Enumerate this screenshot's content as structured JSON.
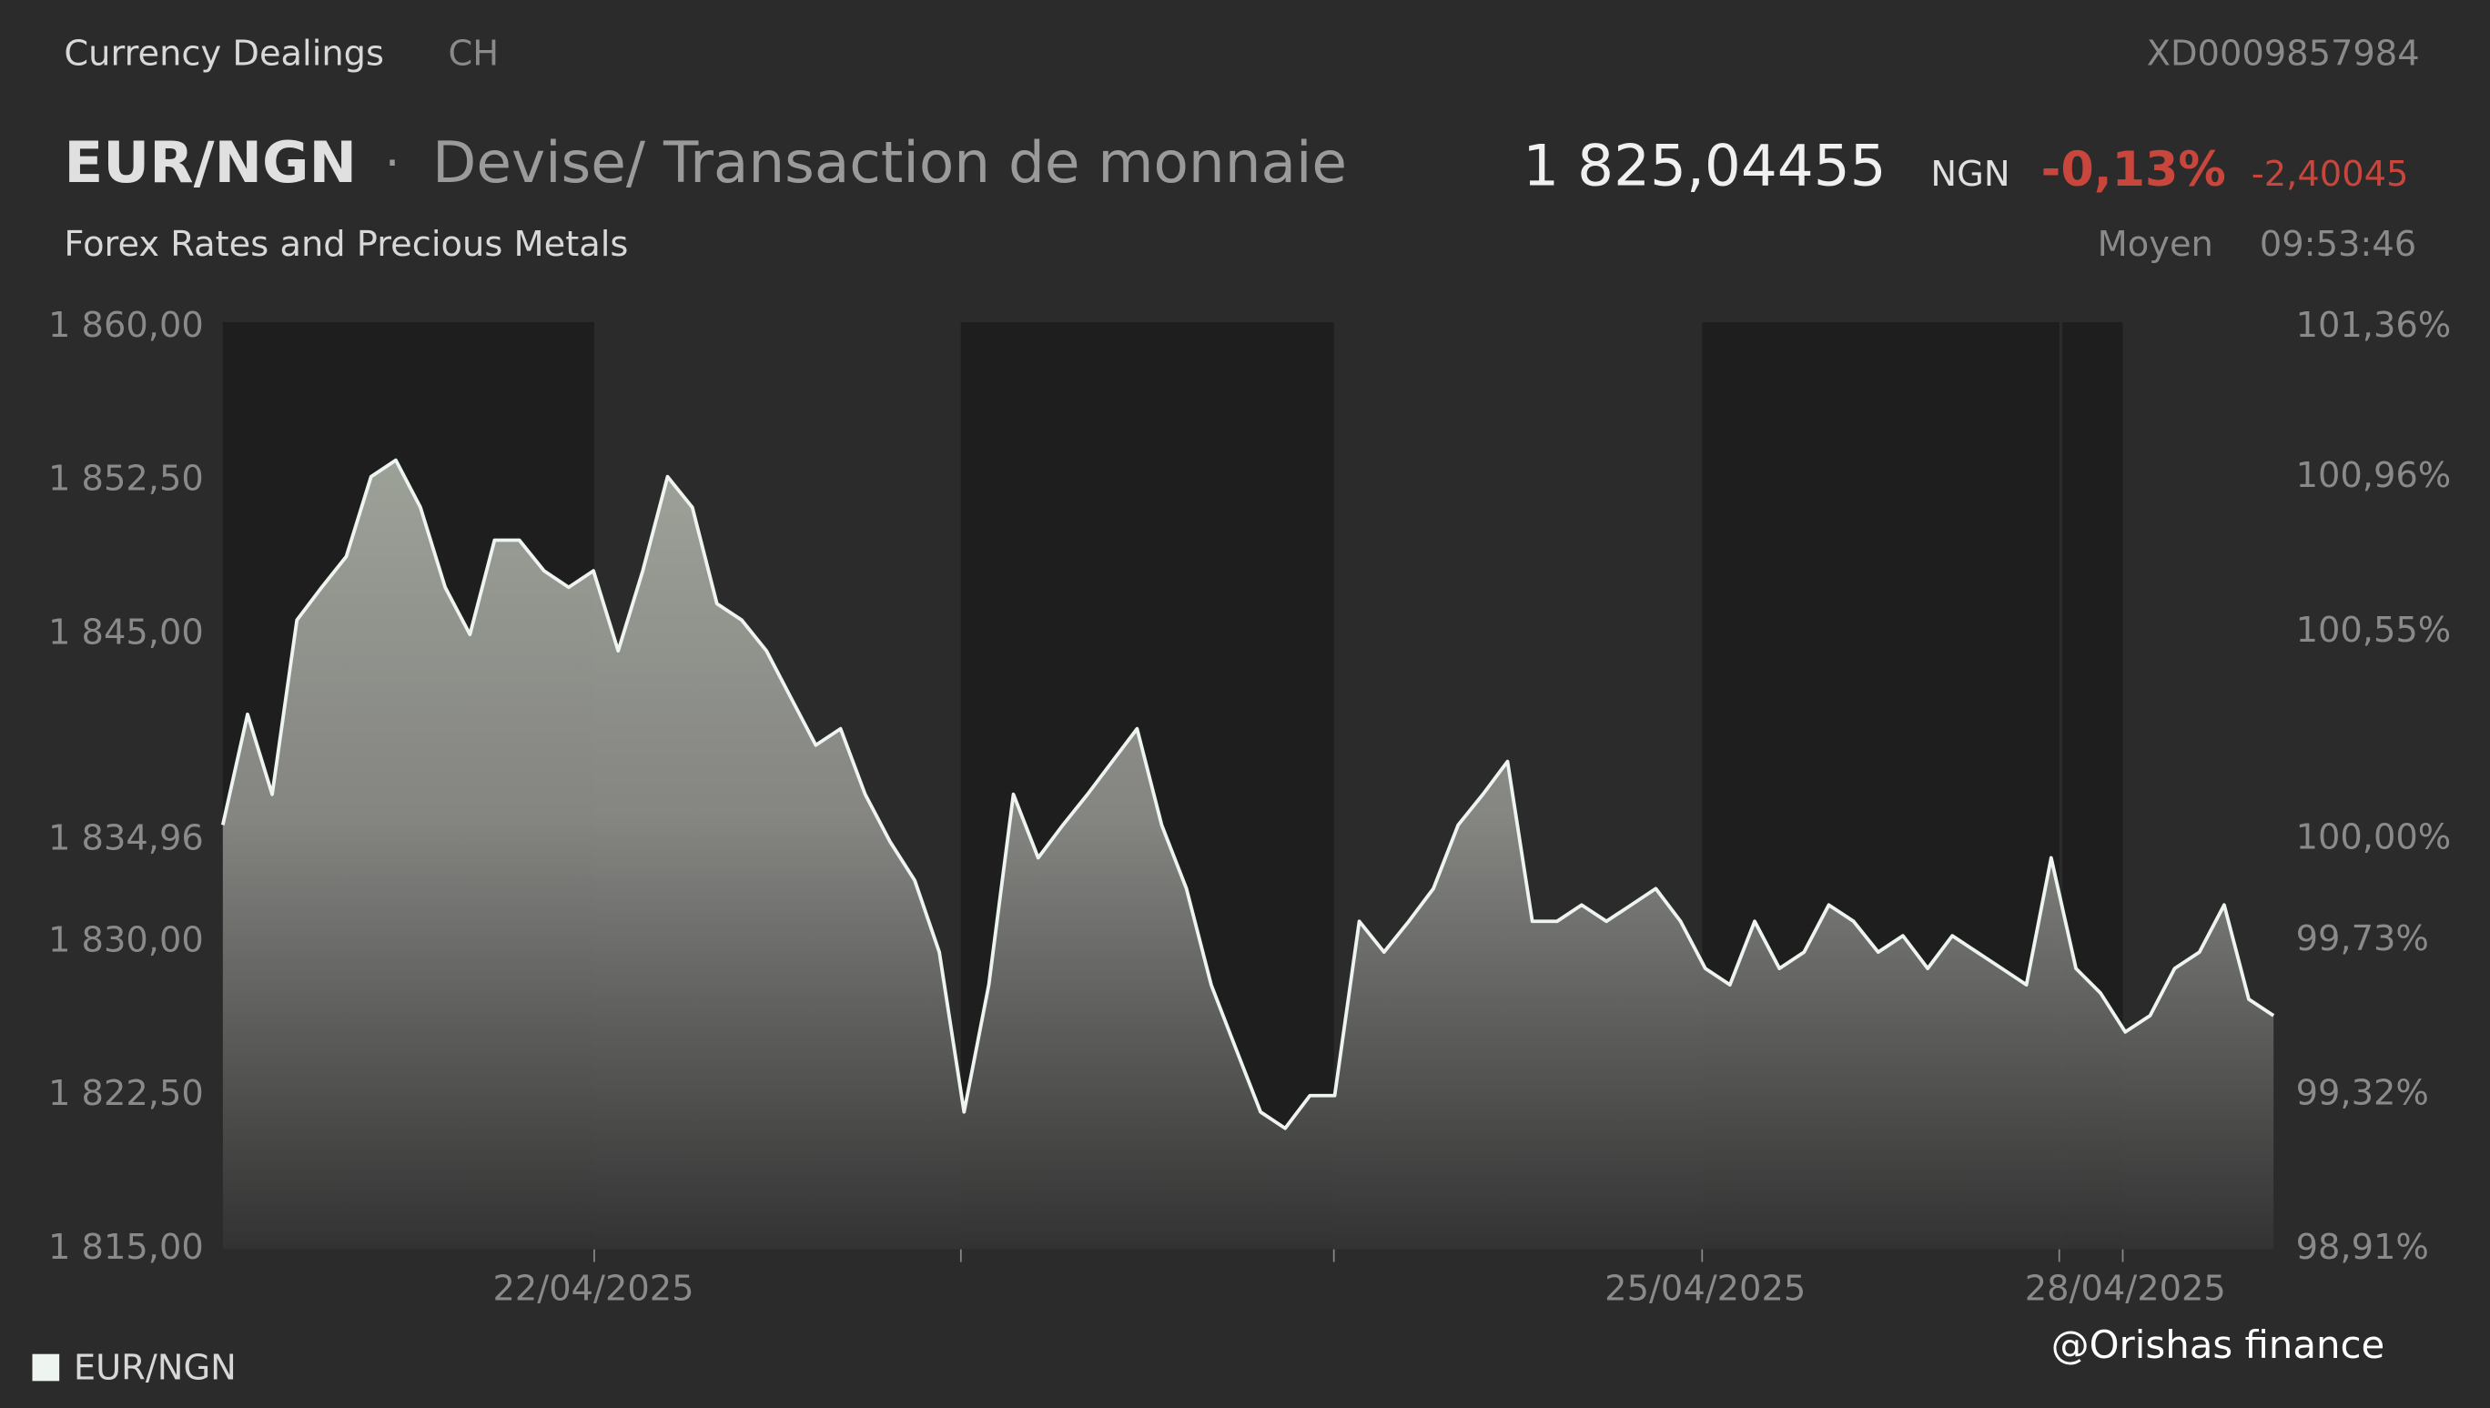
{
  "header": {
    "section": "Currency Dealings",
    "exchange": "CH",
    "isin": "XD0009857984",
    "pair": "EUR/NGN",
    "separator": "·",
    "description": "Devise/ Transaction de monnaie",
    "subtitle": "Forex Rates and Precious Metals",
    "price": "1 825,04455",
    "currency": "NGN",
    "change_pct": "-0,13%",
    "change": "-2,40045",
    "price_type": "Moyen",
    "time": "09:53:46"
  },
  "watermark": "@Orishas finance",
  "chart_data": {
    "type": "area",
    "categories": [
      null,
      null,
      null,
      null,
      null,
      null,
      null,
      null,
      null,
      null,
      null,
      null,
      null,
      null,
      null,
      "22/04/2025",
      null,
      null,
      null,
      null,
      null,
      null,
      null,
      null,
      null,
      null,
      null,
      null,
      null,
      null,
      null,
      null,
      null,
      null,
      null,
      null,
      null,
      null,
      null,
      null,
      null,
      null,
      null,
      null,
      null,
      null,
      null,
      null,
      null,
      null,
      null,
      null,
      null,
      null,
      null,
      null,
      null,
      null,
      null,
      null,
      "25/04/2025",
      null,
      null,
      null,
      null,
      null,
      null,
      null,
      null,
      null,
      null,
      null,
      null,
      null,
      null,
      null,
      null,
      "28/04/2025",
      null,
      null,
      null,
      null,
      null,
      null
    ],
    "series": [
      {
        "name": "EUR/NGN",
        "color": "#eef4ef",
        "values": [
          1835.7,
          1841.1,
          1837.2,
          1845.7,
          1847.3,
          1848.8,
          1852.7,
          1853.5,
          1851.2,
          1847.3,
          1845.0,
          1849.6,
          1849.6,
          1848.1,
          1847.3,
          1848.1,
          1844.2,
          1848.1,
          1852.7,
          1851.2,
          1846.5,
          1845.7,
          1844.2,
          1841.9,
          1839.6,
          1840.4,
          1837.2,
          1834.9,
          1833.0,
          1829.5,
          1821.7,
          1827.9,
          1837.2,
          1834.1,
          1835.7,
          1837.2,
          1838.8,
          1840.4,
          1835.7,
          1832.6,
          1827.9,
          1824.8,
          1821.7,
          1820.9,
          1822.5,
          1822.5,
          1831.0,
          1829.5,
          1831.0,
          1832.6,
          1835.7,
          1837.2,
          1838.8,
          1831.0,
          1831.0,
          1831.8,
          1831.0,
          1831.8,
          1832.6,
          1831.0,
          1828.7,
          1827.9,
          1831.0,
          1828.7,
          1829.5,
          1831.8,
          1831.0,
          1829.5,
          1830.3,
          1828.7,
          1830.3,
          1829.5,
          1828.7,
          1827.9,
          1834.1,
          1828.7,
          1827.5,
          1825.6,
          1826.4,
          1828.7,
          1829.5,
          1831.8,
          1827.2,
          1826.4
        ]
      }
    ],
    "ylim": [
      1815,
      1860
    ],
    "yticks": [
      {
        "value": 1815,
        "label": "1 815,00"
      },
      {
        "value": 1822.5,
        "label": "1 822,50"
      },
      {
        "value": 1830,
        "label": "1 830,00"
      },
      {
        "value": 1834.96,
        "label": "1 834,96"
      },
      {
        "value": 1845,
        "label": "1 845,00"
      },
      {
        "value": 1852.5,
        "label": "1 852,50"
      },
      {
        "value": 1860,
        "label": "1 860,00"
      }
    ],
    "y2lim": [
      98.91,
      101.36
    ],
    "y2ticks": [
      {
        "value": 98.91,
        "label": "98,91%"
      },
      {
        "value": 99.32,
        "label": "99,32%"
      },
      {
        "value": 99.73,
        "label": "99,73%"
      },
      {
        "value": 100,
        "label": "100,00%"
      },
      {
        "value": 100.55,
        "label": "100,55%"
      },
      {
        "value": 100.96,
        "label": "100,96%"
      },
      {
        "value": 101.36,
        "label": "101,36%"
      }
    ]
  }
}
